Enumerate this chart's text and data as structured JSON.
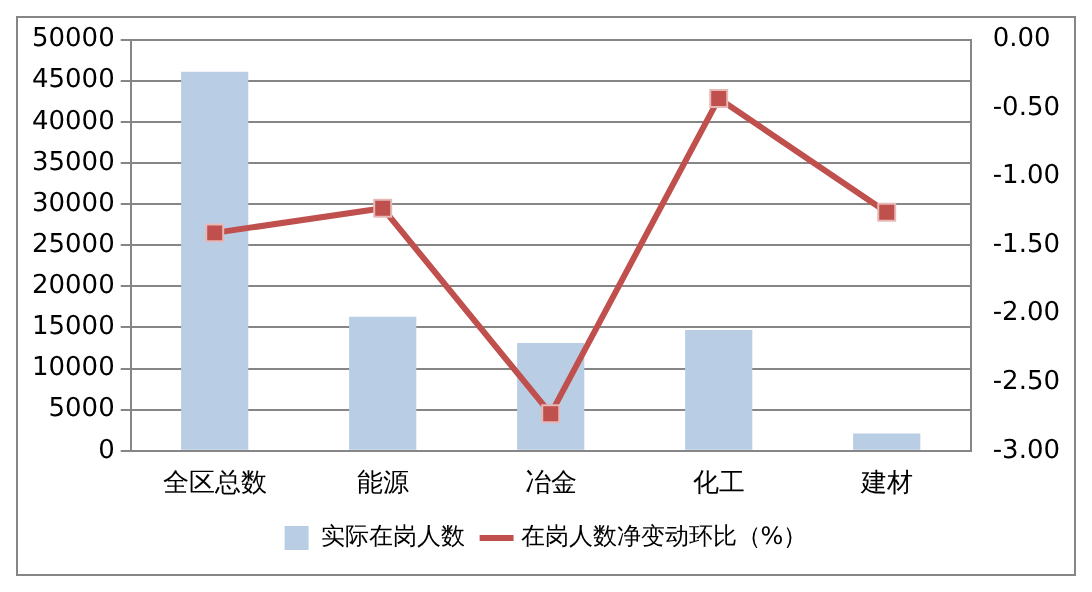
{
  "chart_data": {
    "type": "bar",
    "categories": [
      "全区总数",
      "能源",
      "冶金",
      "化工",
      "建材"
    ],
    "series": [
      {
        "name": "实际在岗人数",
        "color": "#b9cde5",
        "values": [
          46100,
          16300,
          13100,
          14700,
          2100
        ]
      },
      {
        "name": "在岗人数净变动环比（%）",
        "type": "line",
        "axis": "y2",
        "color": "#c0504d",
        "marker": "square",
        "values": [
          -1.41,
          -1.23,
          -2.73,
          -0.43,
          -1.26
        ]
      }
    ],
    "ylim": [
      0,
      50000
    ],
    "yticks": [
      0,
      5000,
      10000,
      15000,
      20000,
      25000,
      30000,
      35000,
      40000,
      45000,
      50000
    ],
    "y2lim": [
      -3,
      0
    ],
    "y2ticks": [
      {
        "value": -3,
        "label": "-3.00"
      },
      {
        "value": -2.5,
        "label": "-2.50"
      },
      {
        "value": -2,
        "label": "-2.00"
      },
      {
        "value": -1.5,
        "label": "-1.50"
      },
      {
        "value": -1,
        "label": "-1.00"
      },
      {
        "value": -0.5,
        "label": "-0.50"
      },
      {
        "value": 0,
        "label": "0.00"
      }
    ],
    "grid": "y",
    "legend": "bottom"
  }
}
